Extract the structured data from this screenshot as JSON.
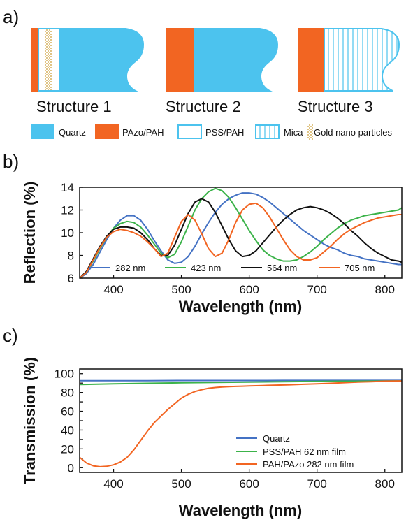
{
  "colors": {
    "quartz": "#4cc3ee",
    "pazo": "#f26522",
    "pss_outline": "#4cc3ee",
    "gold": "#c99a2e",
    "blue_line": "#4472c4",
    "green_line": "#3cb34a",
    "black_line": "#111111",
    "orange_line": "#f26522"
  },
  "panel_a": {
    "label": "a)",
    "structures": [
      "Structure 1",
      "Structure 2",
      "Structure 3"
    ],
    "legend": [
      {
        "name": "Quartz",
        "icon": "filled-swatch"
      },
      {
        "name": "PAzo/PAH",
        "icon": "filled-swatch"
      },
      {
        "name": "PSS/PAH",
        "icon": "outlined-swatch"
      },
      {
        "name": "Mica",
        "icon": "vertical-hatch-swatch"
      },
      {
        "name": "Gold nano particles",
        "icon": "dotted-swatch"
      }
    ]
  },
  "chart_data": [
    {
      "panel": "b)",
      "type": "line",
      "xlabel": "Wavelength (nm)",
      "ylabel": "Reflection (%)",
      "xlim": [
        350,
        825
      ],
      "ylim": [
        6,
        14
      ],
      "xticks": [
        400,
        500,
        600,
        700,
        800
      ],
      "yticks": [
        6,
        8,
        10,
        12,
        14
      ],
      "legend_position": "bottom",
      "series": [
        {
          "name": "282 nm",
          "color": "#4472c4",
          "x": [
            350,
            360,
            370,
            380,
            390,
            400,
            410,
            420,
            430,
            440,
            450,
            460,
            470,
            480,
            490,
            500,
            510,
            520,
            530,
            540,
            550,
            560,
            570,
            580,
            590,
            600,
            610,
            620,
            630,
            640,
            650,
            660,
            670,
            680,
            690,
            700,
            710,
            720,
            730,
            740,
            750,
            760,
            770,
            780,
            790,
            800,
            810,
            820,
            825
          ],
          "y": [
            6.0,
            6.4,
            7.2,
            8.3,
            9.4,
            10.4,
            11.1,
            11.5,
            11.5,
            11.1,
            10.3,
            9.3,
            8.4,
            7.6,
            7.3,
            7.4,
            7.9,
            8.8,
            9.9,
            10.9,
            11.8,
            12.5,
            13.0,
            13.3,
            13.5,
            13.5,
            13.4,
            13.1,
            12.7,
            12.2,
            11.7,
            11.2,
            10.7,
            10.2,
            9.8,
            9.4,
            9.0,
            8.7,
            8.5,
            8.2,
            8.0,
            7.9,
            7.7,
            7.6,
            7.5,
            7.4,
            7.3,
            7.2,
            7.2
          ]
        },
        {
          "name": "423 nm",
          "color": "#3cb34a",
          "x": [
            350,
            360,
            370,
            380,
            390,
            400,
            410,
            420,
            430,
            440,
            450,
            460,
            470,
            480,
            490,
            500,
            510,
            520,
            530,
            540,
            550,
            560,
            570,
            580,
            590,
            600,
            610,
            620,
            630,
            640,
            650,
            660,
            670,
            680,
            690,
            700,
            710,
            720,
            730,
            740,
            750,
            760,
            770,
            780,
            790,
            800,
            810,
            820,
            825
          ],
          "y": [
            6.0,
            6.5,
            7.5,
            8.6,
            9.6,
            10.4,
            10.8,
            11.0,
            10.9,
            10.5,
            9.8,
            9.0,
            8.2,
            7.8,
            8.1,
            9.2,
            10.6,
            12.0,
            13.0,
            13.6,
            13.9,
            13.7,
            13.1,
            12.2,
            11.2,
            10.2,
            9.3,
            8.5,
            8.0,
            7.7,
            7.5,
            7.5,
            7.6,
            7.9,
            8.3,
            8.8,
            9.4,
            9.9,
            10.4,
            10.8,
            11.1,
            11.3,
            11.5,
            11.6,
            11.7,
            11.8,
            11.9,
            12.0,
            12.2
          ]
        },
        {
          "name": "564 nm",
          "color": "#111111",
          "x": [
            350,
            360,
            370,
            380,
            390,
            400,
            410,
            420,
            430,
            440,
            450,
            460,
            470,
            480,
            490,
            500,
            510,
            520,
            530,
            540,
            550,
            560,
            570,
            580,
            590,
            600,
            610,
            620,
            630,
            640,
            650,
            660,
            670,
            680,
            690,
            700,
            710,
            720,
            730,
            740,
            750,
            760,
            770,
            780,
            790,
            800,
            810,
            820,
            825
          ],
          "y": [
            6.0,
            6.6,
            7.7,
            8.8,
            9.7,
            10.3,
            10.5,
            10.5,
            10.4,
            10.0,
            9.4,
            8.6,
            8.0,
            8.0,
            8.9,
            10.3,
            11.7,
            12.7,
            13.0,
            12.7,
            11.8,
            10.6,
            9.4,
            8.4,
            7.9,
            8.0,
            8.4,
            9.1,
            9.8,
            10.5,
            11.1,
            11.6,
            12.0,
            12.2,
            12.3,
            12.2,
            12.0,
            11.7,
            11.3,
            10.8,
            10.2,
            9.7,
            9.1,
            8.6,
            8.2,
            7.9,
            7.6,
            7.5,
            7.4
          ]
        },
        {
          "name": "705 nm",
          "color": "#f26522",
          "x": [
            350,
            360,
            370,
            380,
            390,
            400,
            410,
            420,
            430,
            440,
            450,
            460,
            470,
            480,
            490,
            500,
            510,
            520,
            530,
            540,
            550,
            560,
            570,
            580,
            590,
            600,
            610,
            620,
            630,
            640,
            650,
            660,
            670,
            680,
            690,
            700,
            710,
            720,
            730,
            740,
            750,
            760,
            770,
            780,
            790,
            800,
            810,
            820,
            825
          ],
          "y": [
            6.0,
            6.5,
            7.6,
            8.7,
            9.6,
            10.1,
            10.3,
            10.2,
            10.0,
            9.7,
            9.2,
            8.6,
            7.9,
            8.2,
            9.6,
            11.0,
            11.6,
            11.1,
            9.9,
            8.6,
            7.9,
            8.2,
            9.4,
            10.9,
            12.0,
            12.5,
            12.6,
            12.2,
            11.4,
            10.4,
            9.4,
            8.5,
            7.9,
            7.6,
            7.6,
            7.8,
            8.3,
            8.8,
            9.4,
            9.9,
            10.3,
            10.6,
            10.9,
            11.1,
            11.3,
            11.4,
            11.5,
            11.6,
            11.6
          ]
        }
      ]
    },
    {
      "panel": "c)",
      "type": "line",
      "xlabel": "Wavelength (nm)",
      "ylabel": "Transmission (%)",
      "xlim": [
        350,
        825
      ],
      "ylim": [
        -5,
        105
      ],
      "xticks": [
        400,
        500,
        600,
        700,
        800
      ],
      "yticks": [
        0,
        10,
        20,
        30,
        40,
        50,
        60,
        70,
        80,
        90,
        100
      ],
      "ytick_labels": [
        "0",
        "",
        "20",
        "",
        "40",
        "",
        "60",
        "",
        "80",
        "",
        "100"
      ],
      "legend_position": "bottom-right",
      "series": [
        {
          "name": "Quartz",
          "color": "#4472c4",
          "x": [
            350,
            400,
            450,
            500,
            550,
            600,
            650,
            700,
            750,
            800,
            825
          ],
          "y": [
            92.5,
            92.6,
            92.6,
            92.7,
            92.7,
            92.7,
            92.8,
            92.8,
            92.8,
            92.8,
            92.8
          ]
        },
        {
          "name": "PSS/PAH 62 nm film",
          "color": "#3cb34a",
          "x": [
            350,
            400,
            450,
            500,
            550,
            600,
            650,
            700,
            750,
            800,
            825
          ],
          "y": [
            88.5,
            89.2,
            89.8,
            90.3,
            90.7,
            91.1,
            91.5,
            91.8,
            92.0,
            92.2,
            92.3
          ]
        },
        {
          "name": "PAH/PAzo 282 nm film",
          "color": "#f26522",
          "x": [
            350,
            360,
            370,
            380,
            390,
            400,
            410,
            420,
            430,
            440,
            450,
            460,
            470,
            480,
            490,
            500,
            510,
            520,
            530,
            540,
            550,
            560,
            570,
            580,
            590,
            600,
            620,
            640,
            660,
            680,
            700,
            720,
            740,
            760,
            780,
            800,
            825
          ],
          "y": [
            11,
            5,
            2,
            1,
            1.5,
            3,
            6,
            11,
            19,
            29,
            39,
            48,
            55,
            62,
            68,
            74,
            78,
            81,
            83,
            84.5,
            85.3,
            85.8,
            86.2,
            86.5,
            86.7,
            87,
            87.4,
            87.8,
            88.2,
            88.7,
            89.2,
            89.8,
            90.4,
            91,
            91.5,
            92,
            92.3
          ]
        }
      ]
    }
  ]
}
